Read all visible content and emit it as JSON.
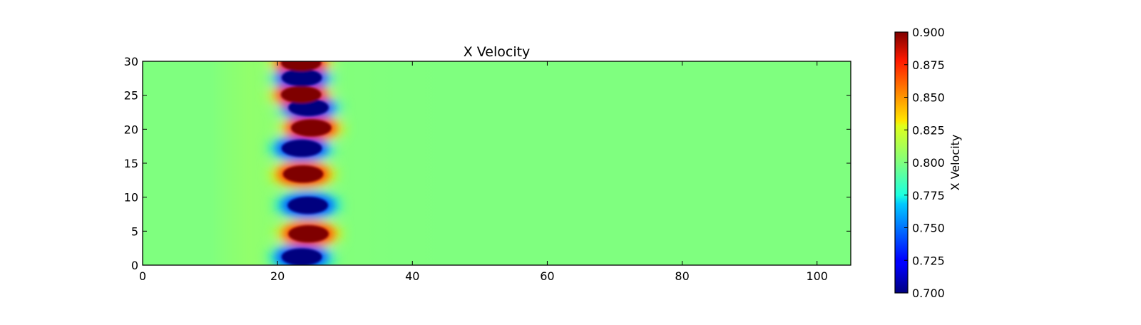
{
  "chart_data": {
    "type": "heatmap",
    "title": "X Velocity",
    "xlabel": "",
    "ylabel": "",
    "xlim": [
      0,
      105
    ],
    "ylim": [
      0,
      30
    ],
    "x_ticks": [
      0,
      20,
      40,
      60,
      80,
      100
    ],
    "y_ticks": [
      0,
      5,
      10,
      15,
      20,
      25,
      30
    ],
    "background_value": 0.8,
    "colormap": "jet",
    "colorbar": {
      "label": "X Velocity",
      "min": 0.7,
      "max": 0.9,
      "ticks": [
        "0.700",
        "0.725",
        "0.750",
        "0.775",
        "0.800",
        "0.825",
        "0.850",
        "0.875",
        "0.900"
      ]
    },
    "features": [
      {
        "x": 23.6,
        "y": 1.2,
        "value": 0.7
      },
      {
        "x": 24.6,
        "y": 4.6,
        "value": 0.9
      },
      {
        "x": 24.5,
        "y": 8.8,
        "value": 0.7
      },
      {
        "x": 23.8,
        "y": 13.4,
        "value": 0.9
      },
      {
        "x": 23.6,
        "y": 17.2,
        "value": 0.7
      },
      {
        "x": 25.0,
        "y": 20.2,
        "value": 0.9
      },
      {
        "x": 24.6,
        "y": 23.2,
        "value": 0.7
      },
      {
        "x": 23.5,
        "y": 25.1,
        "value": 0.9
      },
      {
        "x": 23.6,
        "y": 27.6,
        "value": 0.7
      },
      {
        "x": 23.5,
        "y": 29.8,
        "value": 0.9
      }
    ]
  }
}
